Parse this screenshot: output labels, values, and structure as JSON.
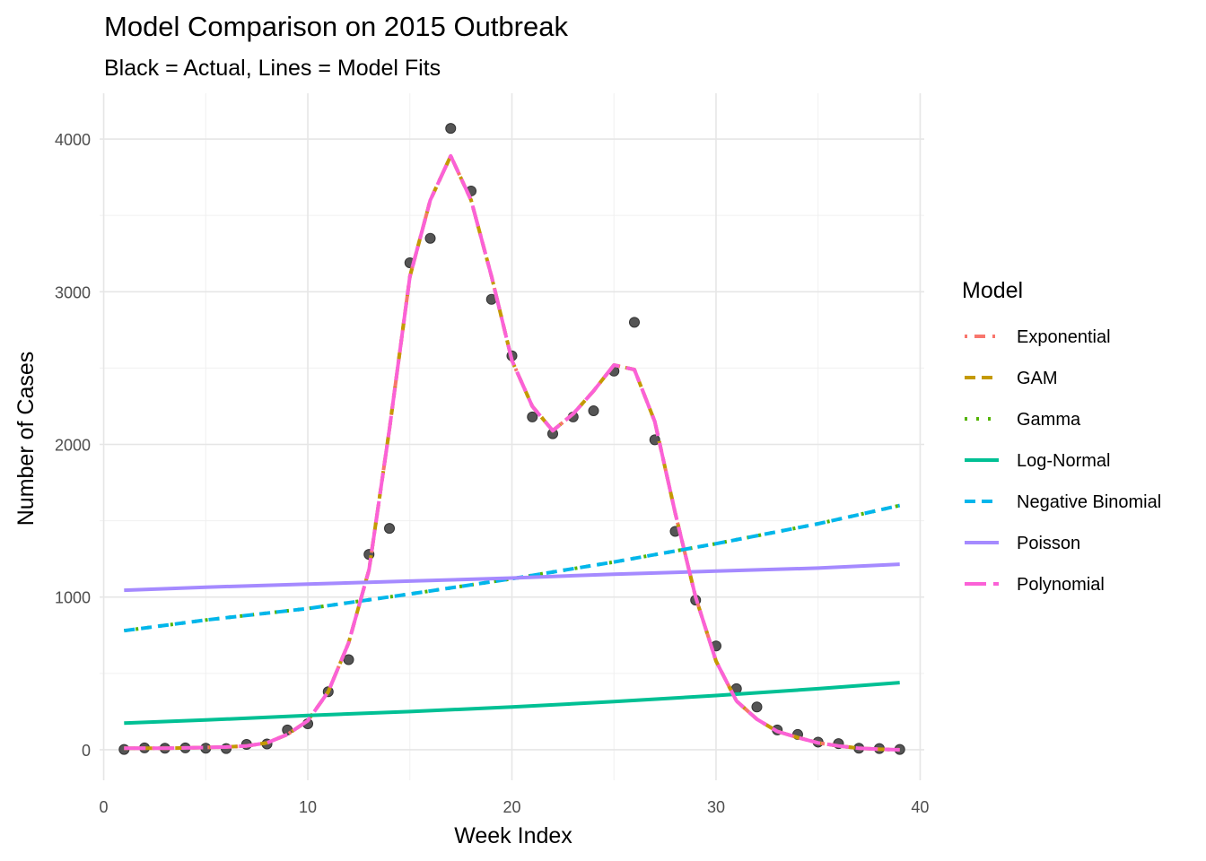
{
  "chart_data": {
    "type": "line",
    "title": "Model Comparison on 2015 Outbreak",
    "subtitle": "Black = Actual, Lines = Model Fits",
    "xlabel": "Week Index",
    "ylabel": "Number of Cases",
    "xlim": [
      -0.2,
      40.2
    ],
    "ylim": [
      -200,
      4300
    ],
    "x_ticks": [
      0,
      10,
      20,
      30,
      40
    ],
    "y_ticks": [
      0,
      1000,
      2000,
      3000,
      4000
    ],
    "grid": true,
    "legend_title": "Model",
    "legend_position": "right",
    "points": {
      "name": "Actual",
      "color": "#555555",
      "x": [
        1,
        2,
        3,
        4,
        5,
        6,
        7,
        8,
        9,
        10,
        11,
        12,
        13,
        14,
        15,
        16,
        17,
        18,
        19,
        20,
        21,
        22,
        23,
        24,
        25,
        26,
        27,
        28,
        29,
        30,
        31,
        32,
        33,
        34,
        35,
        36,
        37,
        38,
        39
      ],
      "y": [
        2,
        12,
        10,
        12,
        10,
        8,
        35,
        38,
        130,
        170,
        380,
        590,
        1280,
        1450,
        3190,
        3350,
        4070,
        3660,
        2950,
        2580,
        2180,
        2070,
        2180,
        2220,
        2480,
        2800,
        2030,
        1430,
        980,
        680,
        400,
        280,
        130,
        100,
        50,
        40,
        10,
        8,
        2
      ]
    },
    "series": [
      {
        "name": "Exponential",
        "color": "#F8766D",
        "dash": "dotdash",
        "x": [
          1,
          2,
          3,
          4,
          5,
          6,
          7,
          8,
          9,
          10,
          11,
          12,
          13,
          14,
          15,
          16,
          17,
          18,
          19,
          20,
          21,
          22,
          23,
          24,
          25,
          26,
          27,
          28,
          29,
          30,
          31,
          32,
          33,
          34,
          35,
          36,
          37,
          38,
          39
        ],
        "y": [
          10,
          10,
          10,
          12,
          15,
          18,
          25,
          45,
          100,
          190,
          380,
          700,
          1180,
          2100,
          3100,
          3600,
          3890,
          3600,
          3100,
          2550,
          2250,
          2090,
          2200,
          2350,
          2520,
          2490,
          2150,
          1550,
          1000,
          580,
          320,
          200,
          120,
          80,
          45,
          25,
          10,
          3,
          0
        ]
      },
      {
        "name": "GAM",
        "color": "#C49A00",
        "dash": "dashed",
        "x": [
          1,
          2,
          3,
          4,
          5,
          6,
          7,
          8,
          9,
          10,
          11,
          12,
          13,
          14,
          15,
          16,
          17,
          18,
          19,
          20,
          21,
          22,
          23,
          24,
          25,
          26,
          27,
          28,
          29,
          30,
          31,
          32,
          33,
          34,
          35,
          36,
          37,
          38,
          39
        ],
        "y": [
          10,
          10,
          10,
          12,
          15,
          18,
          25,
          45,
          100,
          190,
          380,
          700,
          1180,
          2100,
          3100,
          3600,
          3890,
          3600,
          3100,
          2550,
          2250,
          2090,
          2200,
          2350,
          2520,
          2490,
          2150,
          1550,
          1000,
          580,
          320,
          200,
          120,
          80,
          45,
          25,
          10,
          3,
          0
        ]
      },
      {
        "name": "Gamma",
        "color": "#53B400",
        "dash": "dotted",
        "x": [
          1,
          5,
          10,
          15,
          20,
          25,
          30,
          35,
          39
        ],
        "y": [
          780,
          850,
          925,
          1020,
          1120,
          1230,
          1350,
          1480,
          1600
        ]
      },
      {
        "name": "Log-Normal",
        "color": "#00C094",
        "dash": "solid",
        "x": [
          1,
          5,
          10,
          15,
          20,
          25,
          30,
          35,
          39
        ],
        "y": [
          175,
          195,
          225,
          250,
          280,
          315,
          355,
          400,
          440
        ]
      },
      {
        "name": "Negative Binomial",
        "color": "#00B6EB",
        "dash": "dashed",
        "x": [
          1,
          5,
          10,
          15,
          20,
          25,
          30,
          35,
          39
        ],
        "y": [
          780,
          850,
          925,
          1020,
          1120,
          1230,
          1350,
          1480,
          1600
        ]
      },
      {
        "name": "Poisson",
        "color": "#A58AFF",
        "dash": "solid",
        "x": [
          1,
          5,
          10,
          15,
          20,
          25,
          30,
          35,
          39
        ],
        "y": [
          1045,
          1065,
          1085,
          1105,
          1125,
          1150,
          1170,
          1190,
          1215
        ]
      },
      {
        "name": "Polynomial",
        "color": "#FB61D7",
        "dash": "longdash",
        "x": [
          1,
          2,
          3,
          4,
          5,
          6,
          7,
          8,
          9,
          10,
          11,
          12,
          13,
          14,
          15,
          16,
          17,
          18,
          19,
          20,
          21,
          22,
          23,
          24,
          25,
          26,
          27,
          28,
          29,
          30,
          31,
          32,
          33,
          34,
          35,
          36,
          37,
          38,
          39
        ],
        "y": [
          10,
          10,
          10,
          12,
          15,
          18,
          25,
          45,
          100,
          190,
          380,
          700,
          1180,
          2100,
          3100,
          3600,
          3890,
          3600,
          3100,
          2550,
          2250,
          2090,
          2200,
          2350,
          2520,
          2490,
          2150,
          1550,
          1000,
          580,
          320,
          200,
          120,
          80,
          45,
          25,
          10,
          3,
          0
        ]
      }
    ]
  }
}
